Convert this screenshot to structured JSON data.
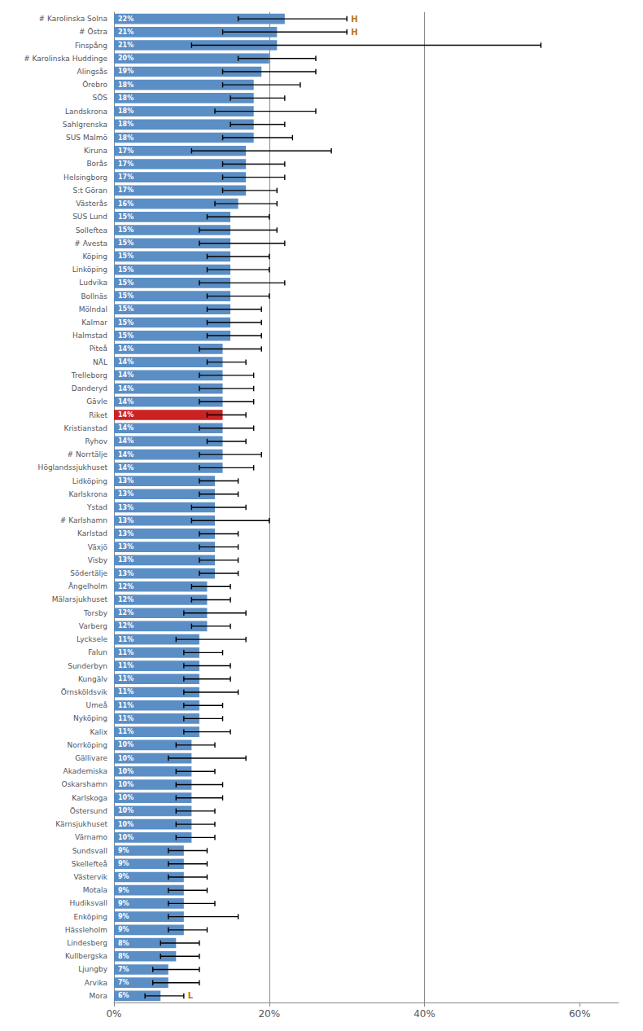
{
  "chart_data": {
    "type": "bar",
    "orientation": "horizontal",
    "categories": [
      "# Karolinska Solna",
      "# Östra",
      "Finspång",
      "# Karolinska Huddinge",
      "Alingsås",
      "Örebro",
      "SÖS",
      "Landskrona",
      "Sahlgrenska",
      "SUS Malmö",
      "Kiruna",
      "Borås",
      "Helsingborg",
      "S:t Göran",
      "Västerås",
      "SUS Lund",
      "Solleftea",
      "# Avesta",
      "Köping",
      "Linköping",
      "Ludvika",
      "Bollnäs",
      "Mölndal",
      "Kalmar",
      "Halmstad",
      "Piteå",
      "NÄL",
      "Trelleborg",
      "Danderyd",
      "Gävle",
      "Riket",
      "Kristianstad",
      "Ryhov",
      "# Norrtälje",
      "Höglandssjukhuset",
      "Lidköping",
      "Karlskrona",
      "Ystad",
      "# Karlshamn",
      "Karlstad",
      "Växjö",
      "Visby",
      "Södertälje",
      "Ängelholm",
      "Mälarsjukhuset",
      "Torsby",
      "Varberg",
      "Lycksele",
      "Falun",
      "Sunderbyn",
      "Kungälv",
      "Örnsköldsvik",
      "Umeå",
      "Nyköping",
      "Kalix",
      "Norrköping",
      "Gällivare",
      "Akademiska",
      "Oskarshamn",
      "Karlskoga",
      "Östersund",
      "Kärnsjukhuset",
      "Värnamo",
      "Sundsvall",
      "Skellefteå",
      "Västervik",
      "Motala",
      "Hudiksvall",
      "Enköping",
      "Hässleholm",
      "Lindesberg",
      "Kullbergska",
      "Ljungby",
      "Arvika",
      "Mora"
    ],
    "values": [
      22,
      21,
      21,
      20,
      19,
      18,
      18,
      18,
      18,
      18,
      17,
      17,
      17,
      17,
      16,
      15,
      15,
      15,
      15,
      15,
      15,
      15,
      15,
      15,
      15,
      14,
      14,
      14,
      14,
      14,
      14,
      14,
      14,
      14,
      14,
      13,
      13,
      13,
      13,
      13,
      13,
      13,
      13,
      12,
      12,
      12,
      12,
      11,
      11,
      11,
      11,
      11,
      11,
      11,
      11,
      10,
      10,
      10,
      10,
      10,
      10,
      10,
      10,
      9,
      9,
      9,
      9,
      9,
      9,
      9,
      8,
      8,
      7,
      7,
      6
    ],
    "value_labels": [
      "22%",
      "21%",
      "21%",
      "20%",
      "19%",
      "18%",
      "18%",
      "18%",
      "18%",
      "18%",
      "17%",
      "17%",
      "17%",
      "17%",
      "16%",
      "15%",
      "15%",
      "15%",
      "15%",
      "15%",
      "15%",
      "15%",
      "15%",
      "15%",
      "15%",
      "14%",
      "14%",
      "14%",
      "14%",
      "14%",
      "14%",
      "14%",
      "14%",
      "14%",
      "14%",
      "13%",
      "13%",
      "13%",
      "13%",
      "13%",
      "13%",
      "13%",
      "13%",
      "12%",
      "12%",
      "12%",
      "12%",
      "11%",
      "11%",
      "11%",
      "11%",
      "11%",
      "11%",
      "11%",
      "11%",
      "10%",
      "10%",
      "10%",
      "10%",
      "10%",
      "10%",
      "10%",
      "10%",
      "9%",
      "9%",
      "9%",
      "9%",
      "9%",
      "9%",
      "9%",
      "8%",
      "8%",
      "7%",
      "7%",
      "6%"
    ],
    "data_labels": true,
    "ci_low": [
      16,
      14,
      10,
      16,
      14,
      14,
      15,
      13,
      15,
      14,
      10,
      14,
      14,
      14,
      13,
      12,
      11,
      11,
      12,
      12,
      11,
      12,
      12,
      12,
      12,
      11,
      12,
      11,
      11,
      11,
      12,
      11,
      12,
      11,
      11,
      11,
      11,
      10,
      10,
      11,
      11,
      11,
      11,
      10,
      10,
      9,
      10,
      8,
      9,
      9,
      9,
      9,
      9,
      9,
      9,
      8,
      7,
      8,
      8,
      8,
      8,
      8,
      8,
      7,
      7,
      7,
      7,
      7,
      7,
      7,
      6,
      6,
      5,
      5,
      4
    ],
    "ci_high": [
      30,
      30,
      55,
      26,
      26,
      24,
      22,
      26,
      22,
      23,
      28,
      22,
      22,
      21,
      21,
      20,
      21,
      22,
      20,
      20,
      22,
      20,
      19,
      19,
      19,
      19,
      17,
      18,
      18,
      18,
      17,
      18,
      17,
      19,
      18,
      16,
      16,
      17,
      20,
      16,
      16,
      16,
      16,
      15,
      15,
      17,
      15,
      17,
      14,
      15,
      15,
      16,
      14,
      14,
      15,
      13,
      17,
      13,
      14,
      14,
      13,
      13,
      13,
      12,
      12,
      12,
      12,
      13,
      16,
      12,
      11,
      11,
      11,
      11,
      9
    ],
    "colors": [
      "#5b8ec4",
      "#5b8ec4",
      "#5b8ec4",
      "#5b8ec4",
      "#5b8ec4",
      "#5b8ec4",
      "#5b8ec4",
      "#5b8ec4",
      "#5b8ec4",
      "#5b8ec4",
      "#5b8ec4",
      "#5b8ec4",
      "#5b8ec4",
      "#5b8ec4",
      "#5b8ec4",
      "#5b8ec4",
      "#5b8ec4",
      "#5b8ec4",
      "#5b8ec4",
      "#5b8ec4",
      "#5b8ec4",
      "#5b8ec4",
      "#5b8ec4",
      "#5b8ec4",
      "#5b8ec4",
      "#5b8ec4",
      "#5b8ec4",
      "#5b8ec4",
      "#5b8ec4",
      "#5b8ec4",
      "#cc2222",
      "#5b8ec4",
      "#5b8ec4",
      "#5b8ec4",
      "#5b8ec4",
      "#5b8ec4",
      "#5b8ec4",
      "#5b8ec4",
      "#5b8ec4",
      "#5b8ec4",
      "#5b8ec4",
      "#5b8ec4",
      "#5b8ec4",
      "#5b8ec4",
      "#5b8ec4",
      "#5b8ec4",
      "#5b8ec4",
      "#5b8ec4",
      "#5b8ec4",
      "#5b8ec4",
      "#5b8ec4",
      "#5b8ec4",
      "#5b8ec4",
      "#5b8ec4",
      "#5b8ec4",
      "#5b8ec4",
      "#5b8ec4",
      "#5b8ec4",
      "#5b8ec4",
      "#5b8ec4",
      "#5b8ec4",
      "#5b8ec4",
      "#5b8ec4",
      "#5b8ec4",
      "#5b8ec4",
      "#5b8ec4",
      "#5b8ec4",
      "#5b8ec4",
      "#5b8ec4",
      "#5b8ec4",
      "#5b8ec4",
      "#5b8ec4",
      "#5b8ec4",
      "#5b8ec4",
      "#5b8ec4"
    ],
    "annotations": [
      {
        "text": "H",
        "category": "# Karolinska Solna",
        "color": "#b87820"
      },
      {
        "text": "H",
        "category": "# Östra",
        "color": "#b87820"
      },
      {
        "text": "L",
        "category": "Mora",
        "color": "#b87820"
      }
    ],
    "reference_lines": [
      20,
      40
    ],
    "xlim": [
      0,
      65
    ],
    "xticks": [
      {
        "value": 0,
        "label": "0%"
      },
      {
        "value": 20,
        "label": "20%"
      },
      {
        "value": 40,
        "label": "40%"
      },
      {
        "value": 60,
        "label": "60%"
      }
    ],
    "grid": false
  }
}
